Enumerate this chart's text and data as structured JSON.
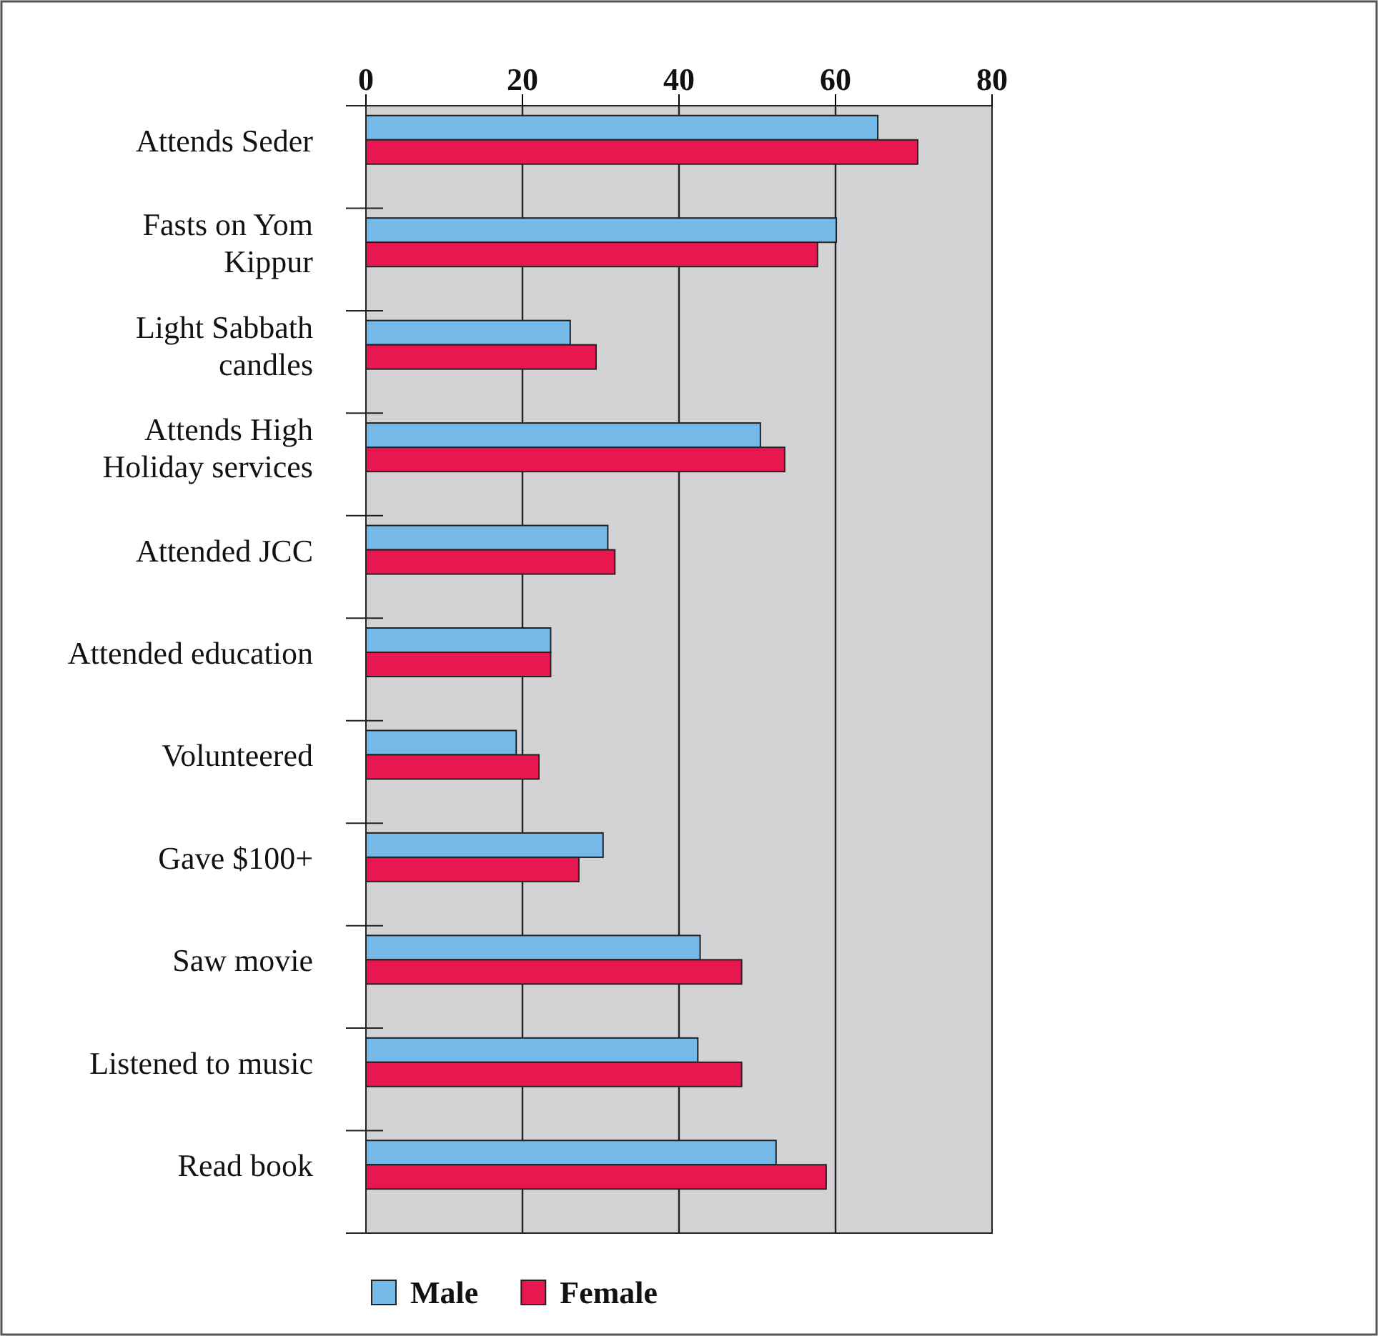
{
  "chart_data": {
    "type": "bar",
    "orientation": "horizontal",
    "categories": [
      "Attends Seder",
      "Fasts on Yom Kippur",
      "Light Sabbath candles",
      "Attends High Holiday services",
      "Attended JCC",
      "Attended education",
      "Volunteered",
      "Gave $100+",
      "Saw movie",
      "Listened to music",
      "Read book"
    ],
    "series": [
      {
        "name": "Male",
        "color": "#74b9e7",
        "values": [
          65.4,
          60.1,
          26.1,
          50.4,
          30.9,
          23.6,
          19.2,
          30.3,
          42.7,
          42.4,
          52.4
        ]
      },
      {
        "name": "Female",
        "color": "#e8174f",
        "values": [
          70.5,
          57.7,
          29.4,
          53.5,
          31.8,
          23.6,
          22.1,
          27.2,
          48.0,
          48.0,
          58.8
        ]
      }
    ],
    "xlim": [
      0,
      80
    ],
    "xticks": [
      0,
      20,
      40,
      60,
      80
    ],
    "grid": "x",
    "legend": "bottom"
  }
}
